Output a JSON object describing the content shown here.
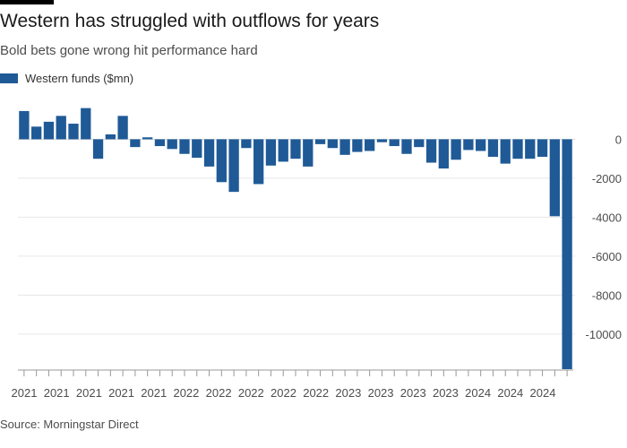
{
  "header": {
    "title": "Western has struggled with outflows for years",
    "subtitle": "Bold bets gone wrong hit performance hard"
  },
  "legend": {
    "label": "Western funds ($mn)"
  },
  "footer": {
    "source": "Source: Morningstar Direct"
  },
  "colors": {
    "bar": "#1f5a96",
    "grid": "#e6e6e6",
    "zero_line": "#d9d9d9",
    "axis_text": "#4d4d4d"
  },
  "chart_data": {
    "type": "bar",
    "title": "Western has struggled with outflows for years",
    "subtitle": "Bold bets gone wrong hit performance hard",
    "xlabel": "",
    "ylabel": "",
    "ylim": [
      -11800,
      1400
    ],
    "yticks": [
      0,
      -2000,
      -4000,
      -6000,
      -8000,
      -10000
    ],
    "ytick_labels": [
      "0",
      "-2000",
      "-4000",
      "-6000",
      "-8000",
      "-10000"
    ],
    "y_axis_side": "right",
    "grid": true,
    "legend_position": "top-left",
    "x_tick_labels": [
      "2021",
      "2021",
      "2021",
      "2021",
      "2021",
      "2022",
      "2022",
      "2022",
      "2022",
      "2022",
      "2023",
      "2023",
      "2023",
      "2023",
      "2024",
      "2024",
      "2024"
    ],
    "series": [
      {
        "name": "Western funds ($mn)",
        "color": "#1f5a96",
        "values": [
          1450,
          650,
          900,
          1200,
          800,
          1600,
          -1000,
          250,
          1200,
          -400,
          100,
          -350,
          -500,
          -750,
          -950,
          -1400,
          -2200,
          -2700,
          -450,
          -2300,
          -1350,
          -1150,
          -1000,
          -1400,
          -250,
          -450,
          -800,
          -650,
          -600,
          -150,
          -350,
          -750,
          -400,
          -1200,
          -1500,
          -1050,
          -550,
          -600,
          -900,
          -1250,
          -1000,
          -1000,
          -900,
          -3950,
          -11800
        ]
      }
    ]
  }
}
